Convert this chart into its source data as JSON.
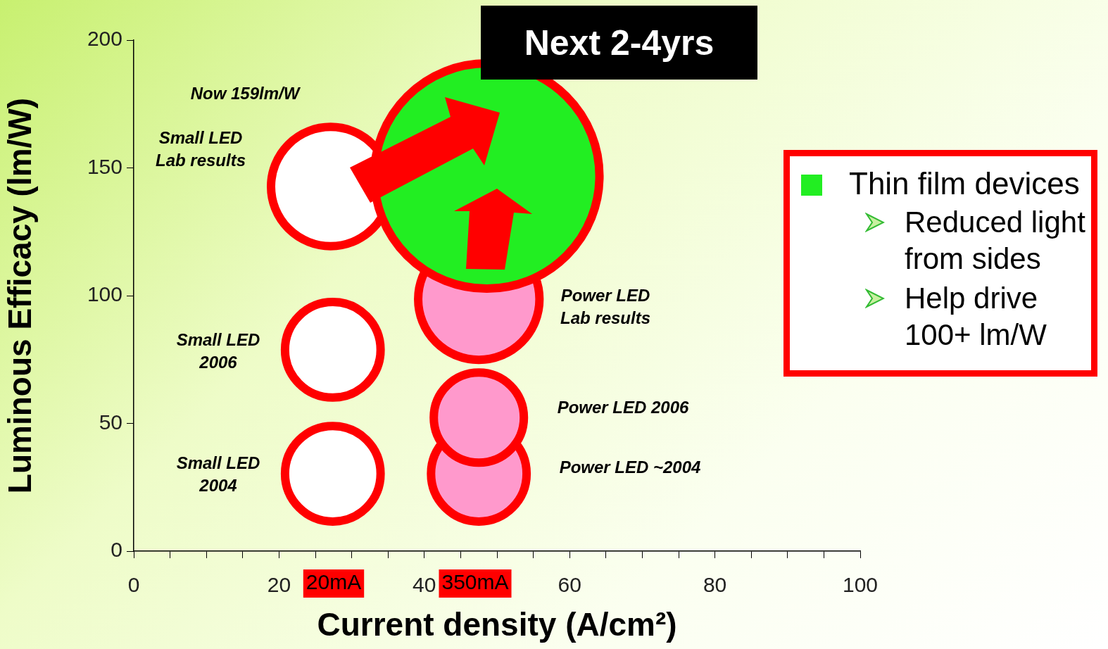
{
  "chart_data": {
    "type": "bubble",
    "title": "Next 2-4yrs",
    "xlabel": "Current density (A/cm²)",
    "ylabel": "Luminous Efficacy (lm/W)",
    "xlim": [
      0,
      100
    ],
    "ylim": [
      0,
      200
    ],
    "xticks": [
      0,
      {
        "value": 5,
        "label": null
      },
      {
        "value": 10,
        "label": null
      },
      {
        "value": 15,
        "label": null
      },
      20,
      {
        "value": 25,
        "label": null
      },
      {
        "value": 30,
        "label": null
      },
      {
        "value": 35,
        "label": null
      },
      40,
      {
        "value": 45,
        "label": null
      },
      {
        "value": 50,
        "label": null
      },
      {
        "value": 55,
        "label": null
      },
      60,
      {
        "value": 65,
        "label": null
      },
      {
        "value": 70,
        "label": null
      },
      {
        "value": 75,
        "label": null
      },
      80,
      {
        "value": 85,
        "label": null
      },
      {
        "value": 90,
        "label": null
      },
      {
        "value": 95,
        "label": null
      },
      100
    ],
    "yticks": [
      0,
      50,
      100,
      150,
      200
    ],
    "series": [
      {
        "name": "Thin film devices",
        "color": "#22ee22",
        "x": [
          48.6
        ],
        "values": [
          146.8
        ],
        "sizes": [
          1
        ]
      },
      {
        "color": "#ffffff",
        "x": [
          27.4,
          27.4,
          27.1
        ],
        "values": [
          30.3,
          78.8,
          142.7
        ],
        "sizes": [
          0.18,
          0.18,
          0.28
        ]
      },
      {
        "color": "#ff99cc",
        "x": [
          47.5,
          47.5,
          47.5
        ],
        "values": [
          30.3,
          52.3,
          98.6
        ],
        "sizes": [
          0.18,
          0.16,
          0.29
        ]
      }
    ],
    "annotations": [
      "Now 159lm/W",
      "Small LED\nLab results",
      "Small LED\n2006",
      "Small LED\n2004",
      "Power LED\nLab results",
      "Power LED 2006",
      "Power LED ~2004",
      "20mA",
      "350mA",
      "Reduced light\nfrom sides",
      "Help drive\n100+ lm/W"
    ],
    "legend": "right",
    "grid": false
  }
}
